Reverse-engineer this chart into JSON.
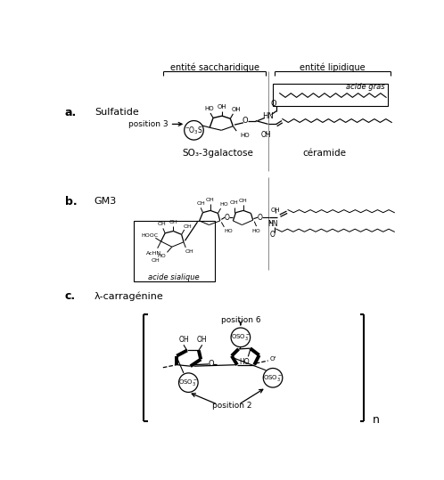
{
  "bg_color": "#ffffff",
  "fig_width": 4.98,
  "fig_height": 5.39,
  "dpi": 100,
  "a_label": "a.",
  "a_name": "Sulfatide",
  "b_label": "b.",
  "b_name": "GM3",
  "c_label": "c.",
  "c_name": "λ-carragénine",
  "header_saccharidique": "entité saccharidique",
  "header_lipidique": "entité lipidique",
  "so3_galactose": "SO₃-3galactose",
  "ceramide": "céramide",
  "acide_gras": "acide gras",
  "acide_sialique": "acide sialique",
  "position3": "position 3",
  "position6": "position 6",
  "position2": "position 2",
  "n_label": "n"
}
